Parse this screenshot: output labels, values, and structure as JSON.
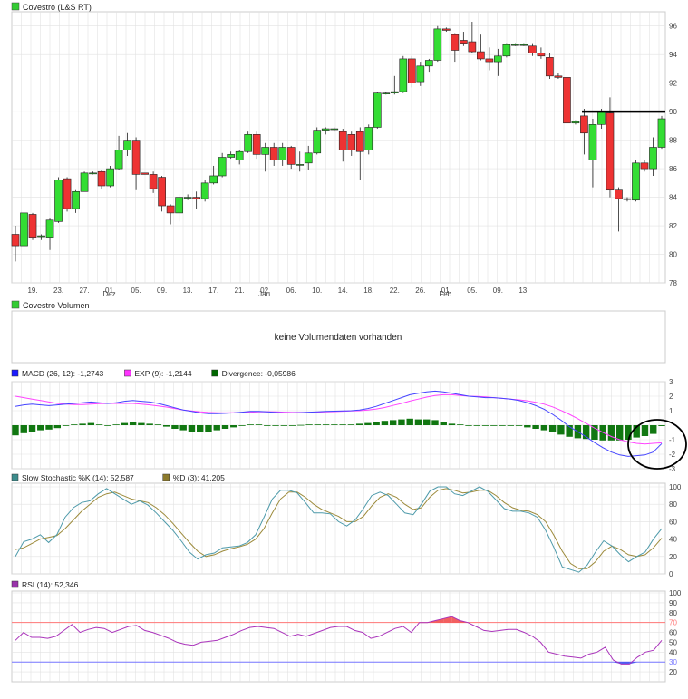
{
  "price_panel": {
    "legend_label": "Covestro (L&S RT)",
    "legend_color": "#33cc33"
  },
  "volume_panel": {
    "legend_label": "Covestro Volumen",
    "legend_color": "#33cc33",
    "empty_message": "keine Volumendaten vorhanden"
  },
  "macd_panel": {
    "legend": [
      {
        "label": "MACD (26, 12): -1,2743",
        "color": "#1a1aff"
      },
      {
        "label": "EXP (9): -1,2144",
        "color": "#ff33ff"
      },
      {
        "label": "Divergence: -0,05986",
        "color": "#006600"
      }
    ]
  },
  "stoch_panel": {
    "legend": [
      {
        "label": "Slow Stochastic %K (14): 52,587",
        "color": "#3c8c8c"
      },
      {
        "label": "%D (3): 41,205",
        "color": "#8c7a2c"
      }
    ]
  },
  "rsi_panel": {
    "legend": [
      {
        "label": "RSI (14): 52,346",
        "color": "#9933aa"
      }
    ]
  },
  "colors": {
    "up": "#33dd33",
    "down": "#ee3333",
    "grid": "#e2e2e2",
    "macd": "#4444ff",
    "signal": "#ff44ff",
    "divergence": "#117711",
    "stoch_k": "#4d9aaa",
    "stoch_d": "#9c8a3a",
    "rsi": "#aa33bb",
    "rsi_high": "#ff7777",
    "rsi_low": "#7777ff"
  },
  "chart_data": [
    {
      "type": "candlestick",
      "ylim": [
        78,
        97
      ],
      "y_ticks": [
        78,
        80,
        82,
        84,
        86,
        88,
        90,
        92,
        94,
        96
      ],
      "x_tick_labels": [
        "19.",
        "23.",
        "27.",
        "01.",
        "05.",
        "09.",
        "13.",
        "17.",
        "21.",
        "02.",
        "06.",
        "10.",
        "14.",
        "18.",
        "22.",
        "26.",
        "01.",
        "05.",
        "09.",
        "13."
      ],
      "x_tick_index": [
        2,
        5,
        8,
        11,
        14,
        17,
        20,
        23,
        26,
        29,
        32,
        35,
        38,
        41,
        44,
        47,
        50,
        53,
        56,
        59
      ],
      "month_labels": [
        {
          "label": "Dez.",
          "index": 11
        },
        {
          "label": "Jan.",
          "index": 29
        },
        {
          "label": "Feb.",
          "index": 50
        }
      ],
      "resistance_level": 90,
      "candles": [
        {
          "o": 81.4,
          "h": 82.0,
          "l": 79.5,
          "c": 80.6
        },
        {
          "o": 80.6,
          "h": 83.0,
          "l": 80.4,
          "c": 82.9
        },
        {
          "o": 82.8,
          "h": 82.9,
          "l": 81.0,
          "c": 81.2
        },
        {
          "o": 81.3,
          "h": 81.4,
          "l": 81.0,
          "c": 81.3
        },
        {
          "o": 81.2,
          "h": 82.5,
          "l": 80.3,
          "c": 82.4
        },
        {
          "o": 82.3,
          "h": 85.4,
          "l": 82.2,
          "c": 85.2
        },
        {
          "o": 85.3,
          "h": 85.4,
          "l": 83.0,
          "c": 83.2
        },
        {
          "o": 83.2,
          "h": 84.5,
          "l": 82.9,
          "c": 84.4
        },
        {
          "o": 84.4,
          "h": 85.8,
          "l": 84.4,
          "c": 85.7
        },
        {
          "o": 85.7,
          "h": 85.8,
          "l": 85.6,
          "c": 85.7
        },
        {
          "o": 85.8,
          "h": 85.9,
          "l": 84.6,
          "c": 84.8
        },
        {
          "o": 84.8,
          "h": 86.2,
          "l": 84.7,
          "c": 86.0
        },
        {
          "o": 86.0,
          "h": 88.3,
          "l": 85.9,
          "c": 87.3
        },
        {
          "o": 87.3,
          "h": 88.5,
          "l": 86.9,
          "c": 88.0
        },
        {
          "o": 88.0,
          "h": 88.2,
          "l": 84.5,
          "c": 85.6
        },
        {
          "o": 85.7,
          "h": 85.7,
          "l": 85.6,
          "c": 85.6
        },
        {
          "o": 85.6,
          "h": 85.8,
          "l": 84.3,
          "c": 84.6
        },
        {
          "o": 85.4,
          "h": 85.5,
          "l": 83.0,
          "c": 83.4
        },
        {
          "o": 83.4,
          "h": 83.5,
          "l": 82.1,
          "c": 82.9
        },
        {
          "o": 82.9,
          "h": 84.2,
          "l": 82.3,
          "c": 84.0
        },
        {
          "o": 84.0,
          "h": 84.2,
          "l": 83.8,
          "c": 84.0
        },
        {
          "o": 84.0,
          "h": 84.4,
          "l": 83.2,
          "c": 83.9
        },
        {
          "o": 83.9,
          "h": 85.2,
          "l": 83.7,
          "c": 85.0
        },
        {
          "o": 85.0,
          "h": 86.2,
          "l": 84.9,
          "c": 85.5
        },
        {
          "o": 85.5,
          "h": 87.1,
          "l": 85.4,
          "c": 86.8
        },
        {
          "o": 86.8,
          "h": 87.2,
          "l": 86.7,
          "c": 87.0
        },
        {
          "o": 86.6,
          "h": 87.3,
          "l": 86.3,
          "c": 87.2
        },
        {
          "o": 87.2,
          "h": 88.6,
          "l": 87.1,
          "c": 88.4
        },
        {
          "o": 88.4,
          "h": 88.6,
          "l": 86.7,
          "c": 87.0
        },
        {
          "o": 87.0,
          "h": 87.8,
          "l": 85.8,
          "c": 87.5
        },
        {
          "o": 87.5,
          "h": 87.8,
          "l": 86.2,
          "c": 86.6
        },
        {
          "o": 86.6,
          "h": 87.8,
          "l": 86.2,
          "c": 87.5
        },
        {
          "o": 87.5,
          "h": 87.6,
          "l": 86.0,
          "c": 86.3
        },
        {
          "o": 86.3,
          "h": 87.2,
          "l": 85.8,
          "c": 86.3
        },
        {
          "o": 86.4,
          "h": 87.6,
          "l": 85.9,
          "c": 87.1
        },
        {
          "o": 87.1,
          "h": 88.9,
          "l": 87.0,
          "c": 88.7
        },
        {
          "o": 88.7,
          "h": 88.9,
          "l": 88.4,
          "c": 88.8
        },
        {
          "o": 88.8,
          "h": 88.9,
          "l": 88.6,
          "c": 88.8
        },
        {
          "o": 88.6,
          "h": 88.8,
          "l": 86.5,
          "c": 87.3
        },
        {
          "o": 88.4,
          "h": 88.6,
          "l": 86.9,
          "c": 87.3
        },
        {
          "o": 88.6,
          "h": 88.9,
          "l": 85.2,
          "c": 87.2
        },
        {
          "o": 87.3,
          "h": 89.1,
          "l": 87.0,
          "c": 88.9
        },
        {
          "o": 88.9,
          "h": 91.4,
          "l": 88.8,
          "c": 91.3
        },
        {
          "o": 91.3,
          "h": 91.4,
          "l": 91.2,
          "c": 91.3
        },
        {
          "o": 91.3,
          "h": 92.5,
          "l": 91.2,
          "c": 91.4
        },
        {
          "o": 91.4,
          "h": 93.9,
          "l": 91.3,
          "c": 93.7
        },
        {
          "o": 93.7,
          "h": 93.9,
          "l": 91.7,
          "c": 92.0
        },
        {
          "o": 92.1,
          "h": 93.5,
          "l": 91.8,
          "c": 93.2
        },
        {
          "o": 93.2,
          "h": 93.7,
          "l": 92.8,
          "c": 93.6
        },
        {
          "o": 93.6,
          "h": 96.0,
          "l": 93.5,
          "c": 95.8
        },
        {
          "o": 95.8,
          "h": 95.9,
          "l": 95.6,
          "c": 95.7
        },
        {
          "o": 95.4,
          "h": 95.5,
          "l": 93.5,
          "c": 94.3
        },
        {
          "o": 95.0,
          "h": 95.6,
          "l": 94.6,
          "c": 94.8
        },
        {
          "o": 94.9,
          "h": 96.3,
          "l": 94.1,
          "c": 94.2
        },
        {
          "o": 94.2,
          "h": 95.4,
          "l": 93.6,
          "c": 93.7
        },
        {
          "o": 93.7,
          "h": 94.5,
          "l": 92.9,
          "c": 93.5
        },
        {
          "o": 93.5,
          "h": 94.4,
          "l": 92.5,
          "c": 93.9
        },
        {
          "o": 93.9,
          "h": 94.8,
          "l": 93.8,
          "c": 94.7
        },
        {
          "o": 94.7,
          "h": 94.8,
          "l": 94.6,
          "c": 94.7
        },
        {
          "o": 94.7,
          "h": 94.8,
          "l": 94.6,
          "c": 94.7
        },
        {
          "o": 94.6,
          "h": 94.8,
          "l": 93.9,
          "c": 94.1
        },
        {
          "o": 94.1,
          "h": 94.5,
          "l": 93.7,
          "c": 93.9
        },
        {
          "o": 93.8,
          "h": 94.1,
          "l": 92.3,
          "c": 92.5
        },
        {
          "o": 92.5,
          "h": 92.7,
          "l": 92.3,
          "c": 92.4
        },
        {
          "o": 92.4,
          "h": 92.5,
          "l": 88.8,
          "c": 89.2
        },
        {
          "o": 89.2,
          "h": 89.4,
          "l": 89.1,
          "c": 89.3
        },
        {
          "o": 89.7,
          "h": 90.2,
          "l": 87.0,
          "c": 88.5
        },
        {
          "o": 86.6,
          "h": 89.5,
          "l": 84.7,
          "c": 89.1
        },
        {
          "o": 89.1,
          "h": 90.2,
          "l": 88.8,
          "c": 90.0
        },
        {
          "o": 89.9,
          "h": 91.0,
          "l": 84.0,
          "c": 84.5
        },
        {
          "o": 84.5,
          "h": 84.7,
          "l": 81.6,
          "c": 83.9
        },
        {
          "o": 83.9,
          "h": 84.0,
          "l": 83.7,
          "c": 83.9
        },
        {
          "o": 83.8,
          "h": 86.6,
          "l": 83.7,
          "c": 86.4
        },
        {
          "o": 86.4,
          "h": 86.6,
          "l": 85.8,
          "c": 86.0
        },
        {
          "o": 86.0,
          "h": 88.2,
          "l": 85.5,
          "c": 87.5
        },
        {
          "o": 87.5,
          "h": 89.7,
          "l": 87.4,
          "c": 89.5
        }
      ]
    },
    {
      "type": "line+bar",
      "name": "MACD",
      "ylim": [
        -3,
        3
      ],
      "y_ticks": [
        -3,
        -2,
        -1,
        1,
        2,
        3
      ],
      "macd": [
        1.3,
        1.4,
        1.45,
        1.4,
        1.35,
        1.4,
        1.45,
        1.5,
        1.55,
        1.6,
        1.55,
        1.5,
        1.55,
        1.65,
        1.7,
        1.65,
        1.6,
        1.5,
        1.35,
        1.2,
        1.05,
        0.95,
        0.85,
        0.8,
        0.8,
        0.82,
        0.85,
        0.9,
        0.95,
        0.95,
        0.92,
        0.88,
        0.85,
        0.85,
        0.87,
        0.9,
        0.92,
        0.95,
        0.97,
        0.98,
        1.0,
        1.05,
        1.15,
        1.3,
        1.5,
        1.7,
        1.9,
        2.1,
        2.2,
        2.3,
        2.35,
        2.3,
        2.2,
        2.1,
        2.0,
        1.95,
        1.9,
        1.9,
        1.85,
        1.8,
        1.7,
        1.55,
        1.35,
        1.1,
        0.75,
        0.35,
        -0.1,
        -0.45,
        -0.8,
        -1.2,
        -1.55,
        -1.85,
        -2.05,
        -2.15,
        -2.1,
        -2.05,
        -1.85,
        -1.27
      ],
      "signal": [
        2.0,
        1.9,
        1.8,
        1.7,
        1.6,
        1.5,
        1.45,
        1.42,
        1.42,
        1.45,
        1.48,
        1.5,
        1.5,
        1.5,
        1.5,
        1.45,
        1.4,
        1.33,
        1.25,
        1.15,
        1.05,
        0.98,
        0.92,
        0.88,
        0.86,
        0.85,
        0.86,
        0.88,
        0.9,
        0.92,
        0.93,
        0.92,
        0.9,
        0.88,
        0.88,
        0.88,
        0.9,
        0.92,
        0.94,
        0.96,
        0.98,
        1.0,
        1.05,
        1.12,
        1.22,
        1.36,
        1.5,
        1.66,
        1.8,
        1.94,
        2.05,
        2.1,
        2.1,
        2.05,
        2.0,
        1.98,
        1.95,
        1.9,
        1.85,
        1.8,
        1.75,
        1.68,
        1.58,
        1.45,
        1.26,
        1.02,
        0.75,
        0.45,
        0.12,
        -0.2,
        -0.5,
        -0.78,
        -1.0,
        -1.15,
        -1.25,
        -1.3,
        -1.25,
        -1.21
      ],
      "divergence": [
        -0.7,
        -0.55,
        -0.45,
        -0.35,
        -0.3,
        -0.2,
        -0.05,
        0.05,
        0.1,
        0.15,
        0.05,
        0.0,
        0.05,
        0.15,
        0.2,
        0.15,
        0.1,
        0.05,
        -0.1,
        -0.25,
        -0.35,
        -0.45,
        -0.5,
        -0.45,
        -0.35,
        -0.25,
        -0.15,
        -0.05,
        0.05,
        0.05,
        0.0,
        -0.05,
        -0.05,
        0.0,
        0.02,
        0.05,
        0.05,
        0.05,
        0.05,
        0.05,
        0.05,
        0.1,
        0.15,
        0.2,
        0.3,
        0.35,
        0.4,
        0.45,
        0.4,
        0.4,
        0.35,
        0.2,
        0.1,
        0.05,
        0.0,
        -0.03,
        -0.05,
        0.0,
        0.0,
        0.0,
        -0.05,
        -0.15,
        -0.25,
        -0.35,
        -0.5,
        -0.65,
        -0.8,
        -0.9,
        -0.95,
        -1.0,
        -1.05,
        -1.05,
        -1.05,
        -1.0,
        -0.85,
        -0.75,
        -0.6,
        -0.06
      ]
    },
    {
      "type": "line",
      "name": "Slow Stochastic",
      "ylim": [
        0,
        100
      ],
      "y_ticks": [
        0,
        20,
        40,
        60,
        80,
        100
      ],
      "k": [
        20,
        37,
        40,
        45,
        36,
        45,
        65,
        76,
        82,
        84,
        92,
        98,
        92,
        86,
        80,
        84,
        79,
        70,
        60,
        50,
        38,
        25,
        17,
        22,
        24,
        30,
        31,
        32,
        36,
        45,
        65,
        86,
        96,
        96,
        93,
        82,
        70,
        70,
        69,
        60,
        55,
        62,
        75,
        90,
        94,
        90,
        80,
        70,
        68,
        80,
        95,
        100,
        100,
        92,
        90,
        95,
        100,
        95,
        85,
        75,
        72,
        72,
        70,
        65,
        50,
        30,
        8,
        5,
        2,
        10,
        25,
        38,
        32,
        22,
        14,
        20,
        25,
        40,
        52
      ],
      "d": [
        28,
        30,
        35,
        40,
        42,
        44,
        52,
        62,
        72,
        80,
        88,
        92,
        94,
        90,
        86,
        84,
        82,
        76,
        68,
        58,
        47,
        36,
        26,
        20,
        22,
        26,
        29,
        31,
        34,
        40,
        52,
        70,
        86,
        94,
        94,
        88,
        80,
        74,
        70,
        66,
        60,
        60,
        66,
        78,
        88,
        92,
        88,
        80,
        74,
        76,
        88,
        96,
        98,
        96,
        93,
        94,
        96,
        96,
        90,
        82,
        76,
        73,
        72,
        68,
        60,
        44,
        26,
        12,
        6,
        6,
        14,
        26,
        32,
        28,
        22,
        20,
        22,
        30,
        41
      ]
    },
    {
      "type": "line",
      "name": "RSI",
      "ylim": [
        10,
        100
      ],
      "y_ticks": [
        20,
        30,
        40,
        50,
        60,
        70,
        80,
        90,
        100
      ],
      "bands": [
        30,
        70
      ],
      "band_labels": [
        "30",
        "70"
      ],
      "rsi": [
        52,
        60,
        55,
        55,
        54,
        56,
        62,
        68,
        60,
        63,
        65,
        64,
        60,
        63,
        66,
        67,
        62,
        60,
        57,
        54,
        50,
        48,
        47,
        50,
        51,
        52,
        55,
        58,
        62,
        65,
        66,
        65,
        64,
        60,
        56,
        58,
        56,
        59,
        62,
        65,
        66,
        66,
        62,
        60,
        54,
        56,
        60,
        64,
        66,
        60,
        70,
        70,
        72,
        74,
        76,
        72,
        70,
        66,
        62,
        61,
        62,
        63,
        63,
        60,
        56,
        50,
        40,
        38,
        36,
        35,
        34,
        38,
        40,
        45,
        32,
        28,
        28,
        35,
        40,
        42,
        52
      ]
    }
  ]
}
